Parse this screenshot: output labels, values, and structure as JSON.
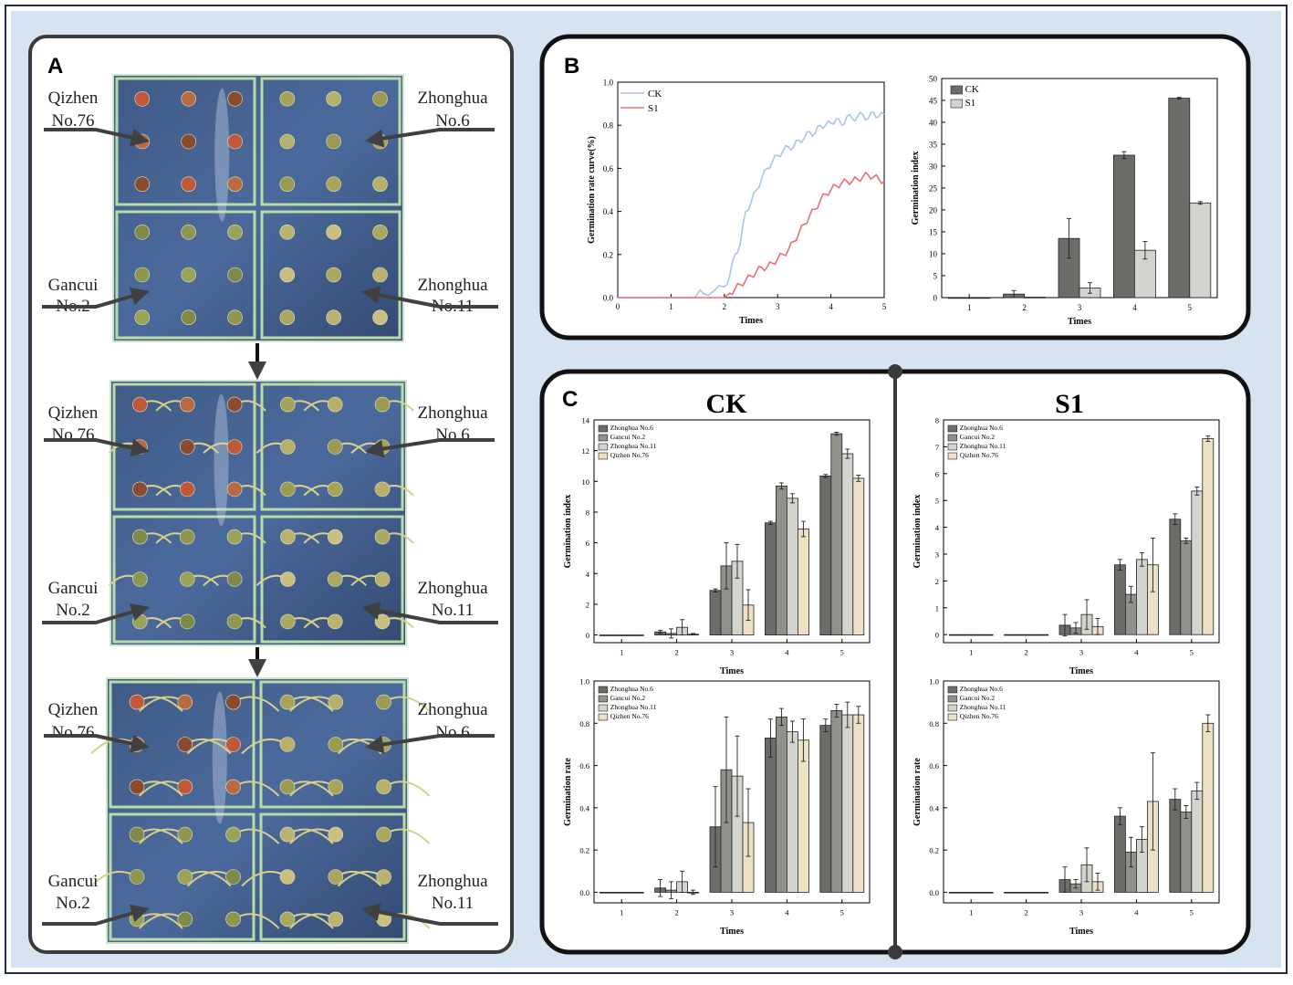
{
  "panel_labels": {
    "a": "A",
    "b": "B",
    "c": "C"
  },
  "panel_a": {
    "stages": [
      {
        "top_left": [
          "Qizhen",
          "No.76"
        ],
        "top_right": [
          "Zhonghua",
          "No.6"
        ],
        "bottom_left": [
          "Gancui",
          "No.2"
        ],
        "bottom_right": [
          "Zhonghua",
          "No.11"
        ]
      },
      {
        "top_left": [
          "Qizhen",
          "No.76"
        ],
        "top_right": [
          "Zhonghua",
          "No.6"
        ],
        "bottom_left": [
          "Gancui",
          "No.2"
        ],
        "bottom_right": [
          "Zhonghua",
          "No.11"
        ]
      },
      {
        "top_left": [
          "Qizhen",
          "No.76"
        ],
        "top_right": [
          "Zhonghua",
          "No.6"
        ],
        "bottom_left": [
          "Gancui",
          "No.2"
        ],
        "bottom_right": [
          "Zhonghua",
          "No.11"
        ]
      }
    ]
  },
  "panel_c_titles": {
    "ck": "CK",
    "s1": "S1"
  },
  "colors": {
    "frame_outer": "#d6e4f2",
    "ck_line": "#a9c4ee",
    "s1_line": "#e87070",
    "zh6": "#6b6e68",
    "gc2": "#8e928b",
    "zh11": "#d4d4cf",
    "qz76": "#eee0c4",
    "ck_bar": "#6b6e68",
    "s1_bar": "#d4d4cf"
  },
  "chart_data": [
    {
      "id": "b_line",
      "type": "line",
      "title": "",
      "xlabel": "Times",
      "ylabel": "Germination rate curve(%)",
      "xlim": [
        0,
        5
      ],
      "ylim": [
        0,
        1.0
      ],
      "xticks": [
        "0",
        "1",
        "2",
        "3",
        "4",
        "5"
      ],
      "yticks": [
        "0.0",
        "0.2",
        "0.4",
        "0.6",
        "0.8",
        "1.0"
      ],
      "legend": [
        "CK",
        "S1"
      ],
      "series": [
        {
          "name": "CK",
          "x": [
            1.45,
            1.5,
            1.6,
            1.8,
            2.0,
            2.1,
            2.2,
            2.3,
            2.4,
            2.5,
            2.6,
            2.7,
            2.8,
            2.9,
            3.0,
            3.1,
            3.2,
            3.3,
            3.4,
            3.5,
            3.6,
            3.7,
            3.8,
            3.9,
            4.0,
            4.1,
            4.2,
            4.3,
            4.4,
            4.5,
            4.6,
            4.7,
            4.8,
            4.9,
            5.0
          ],
          "y": [
            0.0,
            0.02,
            0.02,
            0.03,
            0.05,
            0.1,
            0.2,
            0.25,
            0.4,
            0.44,
            0.5,
            0.55,
            0.6,
            0.63,
            0.66,
            0.68,
            0.7,
            0.7,
            0.73,
            0.74,
            0.77,
            0.76,
            0.8,
            0.8,
            0.81,
            0.83,
            0.8,
            0.84,
            0.83,
            0.84,
            0.85,
            0.83,
            0.86,
            0.84,
            0.85
          ]
        },
        {
          "name": "S1",
          "x": [
            1.45,
            2.0,
            2.1,
            2.2,
            2.3,
            2.4,
            2.5,
            2.6,
            2.7,
            2.8,
            2.9,
            3.0,
            3.1,
            3.2,
            3.3,
            3.4,
            3.5,
            3.6,
            3.7,
            3.8,
            3.9,
            4.0,
            4.1,
            4.2,
            4.3,
            4.4,
            4.5,
            4.6,
            4.7,
            4.8,
            4.9,
            5.0
          ],
          "y": [
            0.0,
            0.0,
            0.02,
            0.04,
            0.06,
            0.08,
            0.1,
            0.12,
            0.14,
            0.14,
            0.16,
            0.18,
            0.2,
            0.22,
            0.26,
            0.3,
            0.34,
            0.38,
            0.41,
            0.45,
            0.48,
            0.5,
            0.52,
            0.53,
            0.54,
            0.54,
            0.55,
            0.56,
            0.57,
            0.56,
            0.55,
            0.54
          ]
        }
      ]
    },
    {
      "id": "b_bar",
      "type": "bar",
      "title": "",
      "xlabel": "Times",
      "ylabel": "Germination index",
      "ylim": [
        0,
        50
      ],
      "categories": [
        "1",
        "2",
        "3",
        "4",
        "5"
      ],
      "yticks": [
        "0",
        "5",
        "10",
        "15",
        "20",
        "25",
        "30",
        "35",
        "40",
        "45",
        "50"
      ],
      "series": [
        {
          "name": "CK",
          "values": [
            0,
            0.8,
            13.5,
            32.5,
            45.5
          ],
          "errors": [
            0,
            0.8,
            4.5,
            0.8,
            0.2
          ]
        },
        {
          "name": "S1",
          "values": [
            0,
            0.1,
            2.2,
            10.8,
            21.6
          ],
          "errors": [
            0,
            0,
            1.2,
            2.0,
            0.3
          ]
        }
      ]
    },
    {
      "id": "c_ck_index",
      "type": "bar",
      "title": "CK",
      "xlabel": "Times",
      "ylabel": "Germination index",
      "ylim": [
        -0.5,
        14
      ],
      "categories": [
        "1",
        "2",
        "3",
        "4",
        "5"
      ],
      "yticks": [
        "0",
        "2",
        "4",
        "6",
        "8",
        "10",
        "12",
        "14"
      ],
      "series": [
        {
          "name": "Zhonghua No.6",
          "values": [
            0,
            0.2,
            2.9,
            7.3,
            10.35
          ],
          "errors": [
            0,
            0.1,
            0.1,
            0.1,
            0.1
          ]
        },
        {
          "name": "Gancui No.2",
          "values": [
            0,
            0.1,
            4.5,
            9.7,
            13.1
          ],
          "errors": [
            0,
            0.3,
            1.5,
            0.2,
            0.1
          ]
        },
        {
          "name": "Zhonghua No.11",
          "values": [
            0,
            0.5,
            4.8,
            8.9,
            11.8
          ],
          "errors": [
            0,
            0.5,
            1.1,
            0.3,
            0.3
          ]
        },
        {
          "name": "Qizhen No.76",
          "values": [
            0,
            0.05,
            1.95,
            6.9,
            10.2
          ],
          "errors": [
            0,
            0.05,
            1.0,
            0.5,
            0.2
          ]
        }
      ]
    },
    {
      "id": "c_s1_index",
      "type": "bar",
      "title": "S1",
      "xlabel": "Times",
      "ylabel": "Germination index",
      "ylim": [
        -0.3,
        8
      ],
      "categories": [
        "1",
        "2",
        "3",
        "4",
        "5"
      ],
      "yticks": [
        "0",
        "1",
        "2",
        "3",
        "4",
        "5",
        "6",
        "7",
        "8"
      ],
      "series": [
        {
          "name": "Zhonghua No.6",
          "values": [
            0,
            0,
            0.35,
            2.6,
            4.3
          ],
          "errors": [
            0,
            0,
            0.4,
            0.2,
            0.2
          ]
        },
        {
          "name": "Gancui No.2",
          "values": [
            0,
            0,
            0.25,
            1.5,
            3.5
          ],
          "errors": [
            0,
            0,
            0.2,
            0.3,
            0.1
          ]
        },
        {
          "name": "Zhonghua No.11",
          "values": [
            0,
            0,
            0.75,
            2.8,
            5.35
          ],
          "errors": [
            0,
            0,
            0.55,
            0.25,
            0.15
          ]
        },
        {
          "name": "Qizhen No.76",
          "values": [
            0,
            0,
            0.3,
            2.6,
            7.3
          ],
          "errors": [
            0,
            0,
            0.3,
            1.0,
            0.1
          ]
        }
      ]
    },
    {
      "id": "c_ck_rate",
      "type": "bar",
      "title": "",
      "xlabel": "Times",
      "ylabel": "Germination rate",
      "ylim": [
        -0.05,
        1.0
      ],
      "categories": [
        "1",
        "2",
        "3",
        "4",
        "5"
      ],
      "yticks": [
        "0.0",
        "0.2",
        "0.4",
        "0.6",
        "0.8",
        "1.0"
      ],
      "series": [
        {
          "name": "Zhonghua No.6",
          "values": [
            0,
            0.02,
            0.31,
            0.73,
            0.79
          ],
          "errors": [
            0,
            0.04,
            0.19,
            0.09,
            0.03
          ]
        },
        {
          "name": "Gancui No.2",
          "values": [
            0,
            0.01,
            0.58,
            0.83,
            0.86
          ],
          "errors": [
            0,
            0.04,
            0.25,
            0.04,
            0.03
          ]
        },
        {
          "name": "Zhonghua No.11",
          "values": [
            0,
            0.05,
            0.55,
            0.76,
            0.84
          ],
          "errors": [
            0,
            0.05,
            0.19,
            0.05,
            0.06
          ]
        },
        {
          "name": "Qizhen No.76",
          "values": [
            0,
            0.0,
            0.33,
            0.72,
            0.84
          ],
          "errors": [
            0,
            0.01,
            0.16,
            0.1,
            0.04
          ]
        }
      ]
    },
    {
      "id": "c_s1_rate",
      "type": "bar",
      "title": "",
      "xlabel": "Times",
      "ylabel": "Germination rate",
      "ylim": [
        -0.05,
        1.0
      ],
      "categories": [
        "1",
        "2",
        "3",
        "4",
        "5"
      ],
      "yticks": [
        "0.0",
        "0.2",
        "0.4",
        "0.6",
        "0.8",
        "1.0"
      ],
      "series": [
        {
          "name": "Zhonghua No.6",
          "values": [
            0,
            0,
            0.06,
            0.36,
            0.44
          ],
          "errors": [
            0,
            0,
            0.06,
            0.04,
            0.05
          ]
        },
        {
          "name": "Gancui No.2",
          "values": [
            0,
            0,
            0.04,
            0.19,
            0.38
          ],
          "errors": [
            0,
            0,
            0.02,
            0.07,
            0.03
          ]
        },
        {
          "name": "Zhonghua No.11",
          "values": [
            0,
            0,
            0.13,
            0.25,
            0.48
          ],
          "errors": [
            0,
            0,
            0.08,
            0.06,
            0.04
          ]
        },
        {
          "name": "Qizhen No.76",
          "values": [
            0,
            0,
            0.05,
            0.43,
            0.8
          ],
          "errors": [
            0,
            0,
            0.04,
            0.23,
            0.04
          ]
        }
      ]
    }
  ]
}
